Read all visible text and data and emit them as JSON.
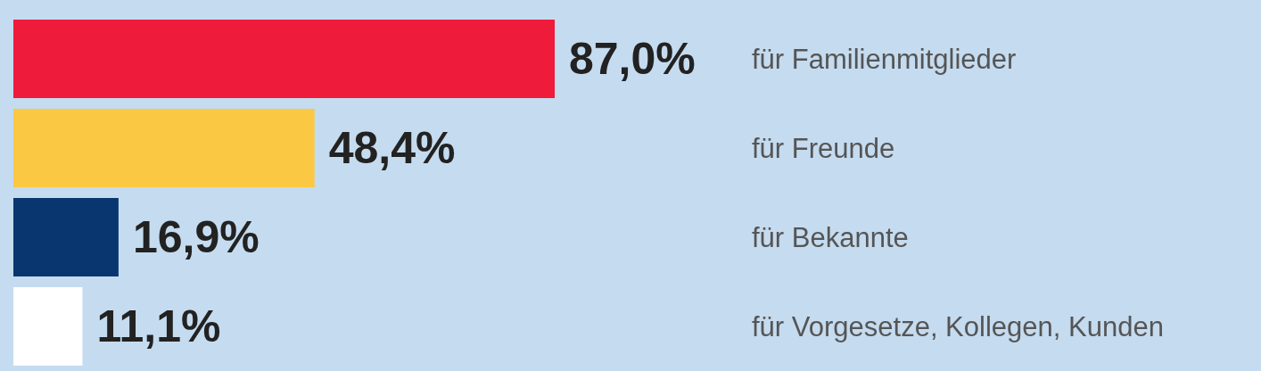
{
  "chart_data": {
    "type": "bar",
    "orientation": "horizontal",
    "categories": [
      "für Familienmitglieder",
      "für Freunde",
      "für Bekannte",
      "für Vorgesetze, Kollegen, Kunden"
    ],
    "values": [
      87.0,
      48.4,
      16.9,
      11.1
    ],
    "colors": [
      "#ee1b3b",
      "#fbc843",
      "#0a3670",
      "#ffffff"
    ],
    "value_labels": [
      "87,0%",
      "48,4%",
      "16,9%",
      "11,1%"
    ]
  }
}
